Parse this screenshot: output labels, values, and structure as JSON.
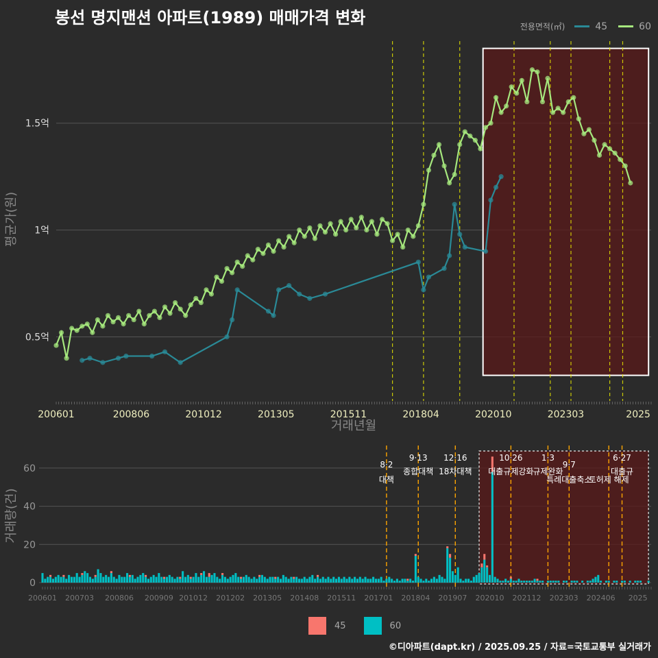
{
  "title": "봉선 명지맨션 아파트(1989) 매매가격 변화",
  "footer": "©디아파트(dapt.kr) / 2025.09.25 / 자료=국토교통부 실거래가",
  "legend_top": {
    "title": "전용면적(㎡)",
    "items": [
      {
        "label": "45",
        "color": "#2a8a97"
      },
      {
        "label": "60",
        "color": "#a6e87e"
      }
    ]
  },
  "legend_bottom": {
    "items": [
      {
        "label": "45",
        "color": "#f8766d"
      },
      {
        "label": "60",
        "color": "#00bfc4"
      }
    ]
  },
  "colors": {
    "background": "#2b2b2b",
    "grid": "#555555",
    "vline": "#e6e600",
    "vline2": "#ffa500",
    "highlight": "#5a1a1a",
    "s45": "#2a8a97",
    "s60": "#a6e87e",
    "bar45": "#f8766d",
    "bar60": "#00bfc4"
  },
  "chart_data": [
    {
      "type": "line",
      "ylabel": "평균가(원)",
      "xlabel": "거래년월",
      "ylim": [
        0.2,
        1.9
      ],
      "y_ticks": [
        {
          "v": 0.5,
          "label": "0.5억"
        },
        {
          "v": 1.0,
          "label": "1억"
        },
        {
          "v": 1.5,
          "label": "1.5억"
        }
      ],
      "x_ticks": [
        {
          "t": 0,
          "label": "200601"
        },
        {
          "t": 29,
          "label": "200806"
        },
        {
          "t": 57,
          "label": "201012"
        },
        {
          "t": 85,
          "label": "201305"
        },
        {
          "t": 113,
          "label": "201511"
        },
        {
          "t": 141,
          "label": "201804"
        },
        {
          "t": 169,
          "label": "202010"
        },
        {
          "t": 197,
          "label": "202303"
        },
        {
          "t": 225,
          "label": "2025"
        }
      ],
      "t_range": [
        0,
        230
      ],
      "highlight": [
        165,
        229,
        0.32,
        1.85
      ],
      "vlines": [
        130,
        142,
        156,
        177,
        191,
        199,
        214,
        219
      ],
      "series": [
        {
          "name": "60",
          "points": [
            [
              0,
              0.46
            ],
            [
              2,
              0.52
            ],
            [
              4,
              0.4
            ],
            [
              6,
              0.54
            ],
            [
              8,
              0.53
            ],
            [
              10,
              0.55
            ],
            [
              12,
              0.56
            ],
            [
              14,
              0.52
            ],
            [
              16,
              0.58
            ],
            [
              18,
              0.55
            ],
            [
              20,
              0.6
            ],
            [
              22,
              0.57
            ],
            [
              24,
              0.59
            ],
            [
              26,
              0.56
            ],
            [
              28,
              0.6
            ],
            [
              30,
              0.58
            ],
            [
              32,
              0.62
            ],
            [
              34,
              0.56
            ],
            [
              36,
              0.6
            ],
            [
              38,
              0.62
            ],
            [
              40,
              0.59
            ],
            [
              42,
              0.64
            ],
            [
              44,
              0.61
            ],
            [
              46,
              0.66
            ],
            [
              48,
              0.63
            ],
            [
              50,
              0.6
            ],
            [
              52,
              0.65
            ],
            [
              54,
              0.68
            ],
            [
              56,
              0.66
            ],
            [
              58,
              0.72
            ],
            [
              60,
              0.7
            ],
            [
              62,
              0.78
            ],
            [
              64,
              0.76
            ],
            [
              66,
              0.82
            ],
            [
              68,
              0.8
            ],
            [
              70,
              0.85
            ],
            [
              72,
              0.83
            ],
            [
              74,
              0.88
            ],
            [
              76,
              0.86
            ],
            [
              78,
              0.91
            ],
            [
              80,
              0.89
            ],
            [
              82,
              0.93
            ],
            [
              84,
              0.9
            ],
            [
              86,
              0.95
            ],
            [
              88,
              0.92
            ],
            [
              90,
              0.97
            ],
            [
              92,
              0.94
            ],
            [
              94,
              1.0
            ],
            [
              96,
              0.97
            ],
            [
              98,
              1.01
            ],
            [
              100,
              0.96
            ],
            [
              102,
              1.02
            ],
            [
              104,
              0.99
            ],
            [
              106,
              1.03
            ],
            [
              108,
              0.98
            ],
            [
              110,
              1.04
            ],
            [
              112,
              1.0
            ],
            [
              114,
              1.05
            ],
            [
              116,
              1.01
            ],
            [
              118,
              1.06
            ],
            [
              120,
              1.0
            ],
            [
              122,
              1.04
            ],
            [
              124,
              0.98
            ],
            [
              126,
              1.05
            ],
            [
              128,
              1.03
            ],
            [
              130,
              0.95
            ],
            [
              132,
              0.98
            ],
            [
              134,
              0.92
            ],
            [
              136,
              1.0
            ],
            [
              138,
              0.97
            ],
            [
              140,
              1.02
            ],
            [
              142,
              1.12
            ],
            [
              144,
              1.28
            ],
            [
              146,
              1.35
            ],
            [
              148,
              1.4
            ],
            [
              150,
              1.3
            ],
            [
              152,
              1.22
            ],
            [
              154,
              1.26
            ],
            [
              156,
              1.4
            ],
            [
              158,
              1.46
            ],
            [
              160,
              1.44
            ],
            [
              162,
              1.42
            ],
            [
              164,
              1.38
            ],
            [
              166,
              1.48
            ],
            [
              168,
              1.5
            ],
            [
              170,
              1.62
            ],
            [
              172,
              1.55
            ],
            [
              174,
              1.58
            ],
            [
              176,
              1.67
            ],
            [
              178,
              1.64
            ],
            [
              180,
              1.7
            ],
            [
              182,
              1.6
            ],
            [
              184,
              1.75
            ],
            [
              186,
              1.74
            ],
            [
              188,
              1.6
            ],
            [
              190,
              1.71
            ],
            [
              192,
              1.55
            ],
            [
              194,
              1.57
            ],
            [
              196,
              1.55
            ],
            [
              198,
              1.6
            ],
            [
              200,
              1.62
            ],
            [
              202,
              1.52
            ],
            [
              204,
              1.45
            ],
            [
              206,
              1.47
            ],
            [
              208,
              1.42
            ],
            [
              210,
              1.35
            ],
            [
              212,
              1.4
            ],
            [
              214,
              1.38
            ],
            [
              216,
              1.36
            ],
            [
              218,
              1.33
            ],
            [
              220,
              1.3
            ],
            [
              222,
              1.22
            ]
          ]
        },
        {
          "name": "45",
          "points": [
            [
              10,
              0.39
            ],
            [
              13,
              0.4
            ],
            [
              18,
              0.38
            ],
            [
              24,
              0.4
            ],
            [
              27,
              0.41
            ],
            [
              37,
              0.41
            ],
            [
              42,
              0.43
            ],
            [
              48,
              0.38
            ],
            [
              66,
              0.5
            ],
            [
              68,
              0.58
            ],
            [
              70,
              0.72
            ],
            [
              82,
              0.62
            ],
            [
              84,
              0.6
            ],
            [
              86,
              0.72
            ],
            [
              90,
              0.74
            ],
            [
              94,
              0.7
            ],
            [
              98,
              0.68
            ],
            [
              104,
              0.7
            ],
            [
              140,
              0.85
            ],
            [
              142,
              0.72
            ],
            [
              144,
              0.78
            ],
            [
              150,
              0.82
            ],
            [
              152,
              0.88
            ],
            [
              154,
              1.12
            ],
            [
              156,
              0.98
            ],
            [
              158,
              0.92
            ],
            [
              166,
              0.9
            ],
            [
              168,
              1.14
            ],
            [
              170,
              1.2
            ],
            [
              172,
              1.25
            ]
          ]
        }
      ]
    },
    {
      "type": "bar",
      "ylabel": "거래량(건)",
      "ylim": [
        0,
        70
      ],
      "y_ticks": [
        0,
        20,
        40,
        60
      ],
      "x_ticks": [
        {
          "t": 0,
          "label": "200601"
        },
        {
          "t": 14,
          "label": "200703"
        },
        {
          "t": 29,
          "label": "200806"
        },
        {
          "t": 44,
          "label": "200909"
        },
        {
          "t": 57,
          "label": "201012"
        },
        {
          "t": 71,
          "label": "201202"
        },
        {
          "t": 85,
          "label": "201305"
        },
        {
          "t": 99,
          "label": "201408"
        },
        {
          "t": 113,
          "label": "201511"
        },
        {
          "t": 127,
          "label": "201701"
        },
        {
          "t": 141,
          "label": "201804"
        },
        {
          "t": 155,
          "label": "201907"
        },
        {
          "t": 169,
          "label": "202010"
        },
        {
          "t": 183,
          "label": "202112"
        },
        {
          "t": 197,
          "label": "202303"
        },
        {
          "t": 211,
          "label": "202406"
        },
        {
          "t": 225,
          "label": "2025"
        }
      ],
      "highlight": [
        165,
        229
      ],
      "annotations": [
        {
          "t": 130,
          "date": "8·2",
          "label": "대책",
          "yrow": 1
        },
        {
          "t": 142,
          "date": "9·13",
          "label": "종합대책",
          "yrow": 0
        },
        {
          "t": 156,
          "date": "12·16",
          "label": "18차대책",
          "yrow": 0
        },
        {
          "t": 177,
          "date": "10·26",
          "label": "대출규제강화",
          "yrow": 0
        },
        {
          "t": 191,
          "date": "1·3",
          "label": "규제완화",
          "yrow": 0
        },
        {
          "t": 199,
          "date": "9·7",
          "label": "특례대출축소",
          "yrow": 1
        },
        {
          "t": 214,
          "date": "",
          "label": "토허제 해제",
          "yrow": 1
        },
        {
          "t": 219,
          "date": "6·27",
          "label": "대출규",
          "yrow": 0
        }
      ],
      "vlines": [
        130,
        142,
        156,
        177,
        191,
        199,
        214,
        219
      ],
      "bars60": [
        5,
        2,
        3,
        3,
        2,
        3,
        4,
        3,
        3,
        2,
        4,
        3,
        3,
        5,
        3,
        4,
        6,
        5,
        3,
        2,
        3,
        7,
        5,
        3,
        4,
        3,
        5,
        3,
        2,
        4,
        3,
        3,
        5,
        3,
        4,
        2,
        3,
        4,
        5,
        3,
        2,
        3,
        4,
        3,
        5,
        3,
        2,
        3,
        4,
        3,
        2,
        3,
        2,
        6,
        3,
        4,
        2,
        3,
        5,
        3,
        4,
        6,
        3,
        3,
        4,
        5,
        3,
        2,
        4,
        3,
        2,
        3,
        4,
        5,
        3,
        2,
        3,
        4,
        3,
        2,
        3,
        2,
        3,
        4,
        3,
        2,
        3,
        3,
        2,
        3,
        2,
        4,
        3,
        2,
        3,
        2,
        3,
        2,
        2,
        3,
        2,
        3,
        4,
        2,
        3,
        2,
        3,
        2,
        3,
        2,
        3,
        2,
        3,
        2,
        3,
        2,
        3,
        2,
        3,
        2,
        3,
        2,
        3,
        2,
        2,
        3,
        2,
        2,
        3,
        1,
        2,
        3,
        2,
        1,
        2,
        1,
        2,
        2,
        1,
        2,
        1,
        14,
        3,
        2,
        1,
        2,
        1,
        2,
        3,
        2,
        4,
        3,
        2,
        18,
        13,
        6,
        4,
        8,
        2,
        1,
        2,
        2,
        1,
        3,
        4,
        5,
        8,
        12,
        8,
        4,
        58,
        3,
        2,
        1,
        1,
        2,
        1,
        2,
        1,
        1,
        2,
        1,
        1,
        1,
        1,
        1,
        2,
        1,
        1,
        1,
        0,
        1,
        1,
        1,
        1,
        1,
        0,
        1,
        1,
        0,
        1,
        1,
        1,
        0,
        1,
        0,
        1,
        1,
        2,
        3,
        4,
        1,
        0,
        1,
        1,
        0,
        1,
        1,
        0,
        1,
        1,
        0,
        1,
        0,
        1,
        1,
        1,
        0,
        0,
        1,
        0
      ],
      "bars45": [
        0,
        0,
        0,
        1,
        0,
        0,
        0,
        0,
        1,
        0,
        0,
        0,
        0,
        0,
        0,
        1,
        0,
        0,
        0,
        0,
        1,
        0,
        0,
        0,
        0,
        0,
        1,
        0,
        0,
        0,
        0,
        0,
        0,
        1,
        0,
        0,
        0,
        0,
        0,
        1,
        0,
        0,
        0,
        0,
        0,
        0,
        1,
        0,
        0,
        0,
        0,
        0,
        1,
        0,
        0,
        0,
        1,
        0,
        0,
        0,
        1,
        0,
        0,
        2,
        0,
        0,
        0,
        0,
        1,
        0,
        0,
        0,
        0,
        0,
        0,
        1,
        0,
        0,
        0,
        0,
        0,
        0,
        1,
        0,
        0,
        0,
        0,
        0,
        1,
        0,
        0,
        0,
        0,
        0,
        0,
        1,
        0,
        0,
        0,
        0,
        0,
        0,
        0,
        0,
        1,
        0,
        0,
        0,
        0,
        0,
        0,
        0,
        0,
        0,
        0,
        0,
        0,
        0,
        0,
        0,
        0,
        0,
        0,
        0,
        0,
        0,
        0,
        0,
        0,
        0,
        0,
        0,
        0,
        0,
        0,
        0,
        0,
        0,
        1,
        0,
        0,
        1,
        0,
        0,
        0,
        0,
        0,
        0,
        0,
        0,
        0,
        0,
        0,
        1,
        2,
        0,
        0,
        0,
        0,
        0,
        0,
        0,
        0,
        0,
        0,
        0,
        2,
        3,
        1,
        0,
        8,
        0,
        0,
        0,
        0,
        0,
        0,
        1,
        0,
        0,
        0,
        0,
        0,
        0,
        0,
        0,
        0,
        1,
        0,
        0,
        0,
        0,
        0,
        0,
        0,
        0,
        0,
        0,
        0,
        0,
        0,
        0,
        0,
        0,
        0,
        0,
        0,
        0,
        0,
        0,
        0,
        0,
        0,
        0,
        0,
        0,
        0,
        0,
        0,
        0,
        0,
        0,
        0,
        0,
        0,
        0,
        0,
        0,
        0,
        0,
        0,
        0,
        0,
        0,
        0
      ]
    }
  ]
}
